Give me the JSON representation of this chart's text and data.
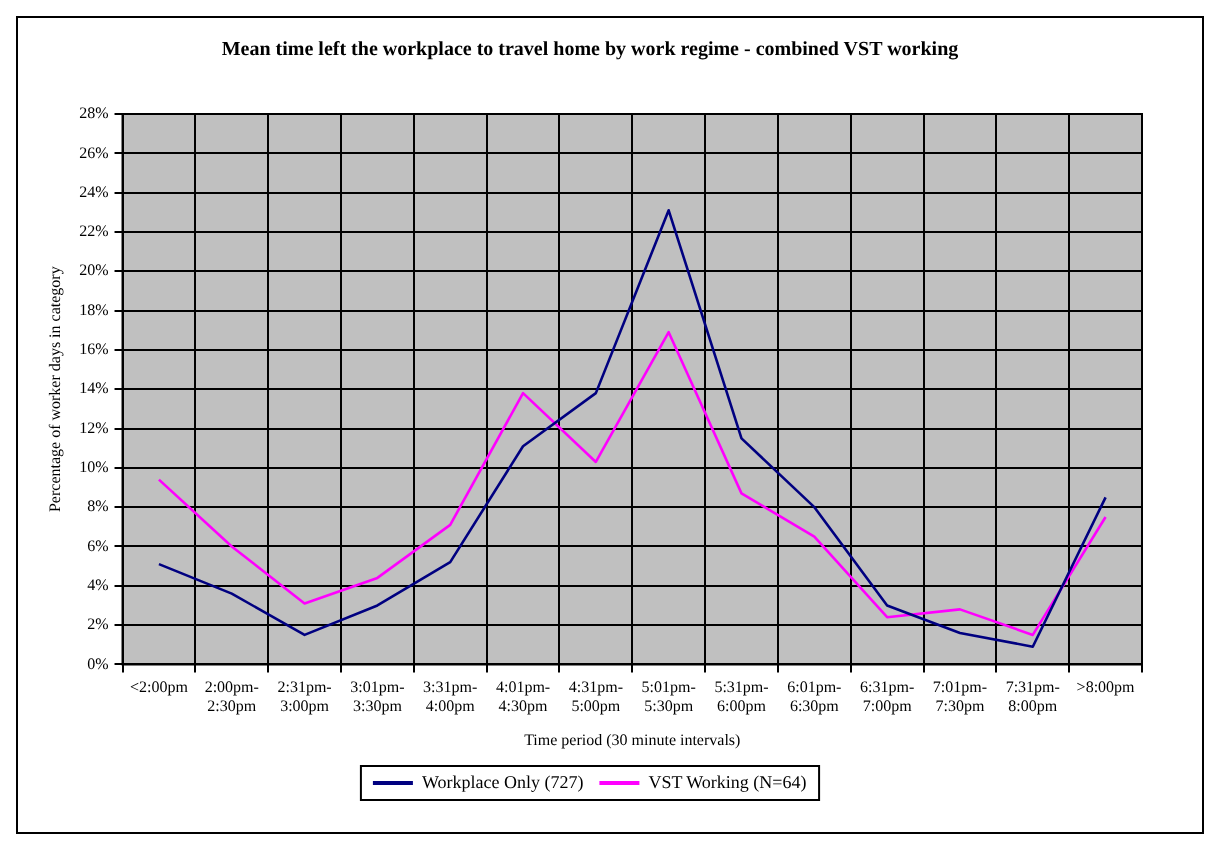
{
  "chart_data": {
    "type": "line",
    "title": "Mean time left the workplace to travel home by work regime - combined VST working",
    "xlabel": "Time period (30 minute intervals)",
    "ylabel": "Percentage of worker days in category",
    "categories": [
      "<2:00pm",
      "2:00pm-2:30pm",
      "2:31pm-3:00pm",
      "3:01pm-3:30pm",
      "3:31pm-4:00pm",
      "4:01pm-4:30pm",
      "4:31pm-5:00pm",
      "5:01pm-5:30pm",
      "5:31pm-6:00pm",
      "6:01pm-6:30pm",
      "6:31pm-7:00pm",
      "7:01pm-7:30pm",
      "7:31pm-8:00pm",
      ">8:00pm"
    ],
    "series": [
      {
        "name": "Workplace Only (727)",
        "color": "#000080",
        "values": [
          5.1,
          3.6,
          1.5,
          3.0,
          5.2,
          11.1,
          13.8,
          23.1,
          11.5,
          8.0,
          3.0,
          1.6,
          0.9,
          8.5
        ]
      },
      {
        "name": "VST Working (N=64)",
        "color": "#ff00ff",
        "values": [
          9.4,
          6.0,
          3.1,
          4.4,
          7.1,
          13.8,
          10.3,
          16.9,
          8.7,
          6.5,
          2.4,
          2.8,
          1.5,
          7.5
        ]
      }
    ],
    "ylim": [
      0,
      28
    ],
    "yticks": [
      {
        "value": 0,
        "label": "0%"
      },
      {
        "value": 2,
        "label": "2%"
      },
      {
        "value": 4,
        "label": "4%"
      },
      {
        "value": 6,
        "label": "6%"
      },
      {
        "value": 8,
        "label": "8%"
      },
      {
        "value": 10,
        "label": "10%"
      },
      {
        "value": 12,
        "label": "12%"
      },
      {
        "value": 14,
        "label": "14%"
      },
      {
        "value": 16,
        "label": "16%"
      },
      {
        "value": 18,
        "label": "18%"
      },
      {
        "value": 20,
        "label": "20%"
      },
      {
        "value": 22,
        "label": "22%"
      },
      {
        "value": 24,
        "label": "24%"
      },
      {
        "value": 26,
        "label": "26%"
      },
      {
        "value": 28,
        "label": "28%"
      }
    ],
    "grid": true,
    "legend": "bottom",
    "marker": "none",
    "line_style": "solid"
  }
}
